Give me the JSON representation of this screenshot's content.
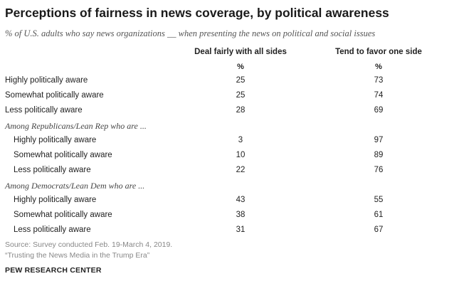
{
  "chart_data": {
    "type": "table",
    "title": "Perceptions of fairness in news coverage, by political awareness",
    "subtitle": "% of U.S. adults who say news organizations __ when presenting the news on political and social issues",
    "columns": [
      "Deal fairly with all sides",
      "Tend to favor one side"
    ],
    "unit_label": "%",
    "rows": [
      {
        "label": "Highly politically aware",
        "kind": "data",
        "indent": false,
        "values": [
          25,
          73
        ]
      },
      {
        "label": "Somewhat politically aware",
        "kind": "data",
        "indent": false,
        "values": [
          25,
          74
        ]
      },
      {
        "label": "Less politically aware",
        "kind": "data",
        "indent": false,
        "values": [
          28,
          69
        ]
      },
      {
        "label": "Among Republicans/Lean Rep who are ...",
        "kind": "group",
        "indent": false,
        "values": []
      },
      {
        "label": "Highly politically aware",
        "kind": "data",
        "indent": true,
        "values": [
          3,
          97
        ]
      },
      {
        "label": "Somewhat politically aware",
        "kind": "data",
        "indent": true,
        "values": [
          10,
          89
        ]
      },
      {
        "label": "Less politically aware",
        "kind": "data",
        "indent": true,
        "values": [
          22,
          76
        ]
      },
      {
        "label": "Among Democrats/Lean Dem who are ...",
        "kind": "group",
        "indent": false,
        "values": []
      },
      {
        "label": "Highly politically aware",
        "kind": "data",
        "indent": true,
        "values": [
          43,
          55
        ]
      },
      {
        "label": "Somewhat politically aware",
        "kind": "data",
        "indent": true,
        "values": [
          38,
          61
        ]
      },
      {
        "label": "Less politically aware",
        "kind": "data",
        "indent": true,
        "values": [
          31,
          67
        ]
      }
    ]
  },
  "footer": {
    "source": "Source: Survey conducted Feb. 19-March 4, 2019.",
    "report": "“Trusting the News Media in the Trump Era”",
    "org": "PEW RESEARCH CENTER"
  }
}
